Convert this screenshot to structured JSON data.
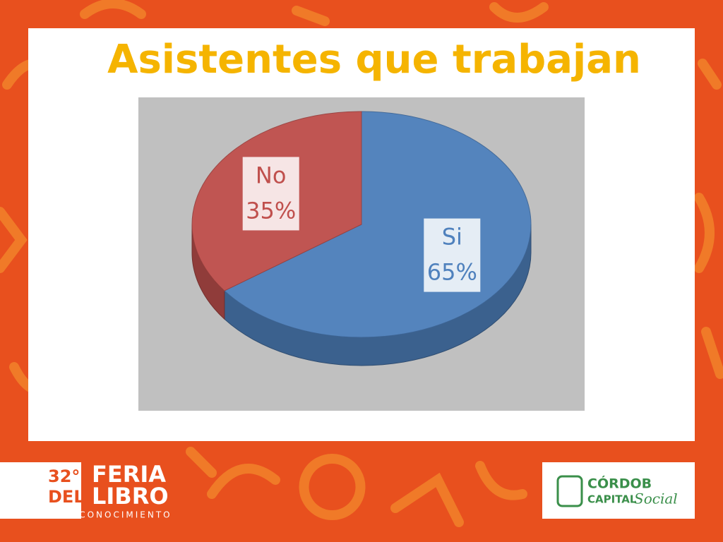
{
  "chart_data": {
    "type": "pie",
    "title": "Asistentes que trabajan",
    "categories": [
      "Si",
      "No"
    ],
    "values": [
      65,
      35
    ],
    "value_labels": [
      "65%",
      "35%"
    ],
    "colors": [
      "#4f81bd",
      "#c0504d"
    ]
  },
  "footer": {
    "left_logo": {
      "edition": "32°",
      "line1": "FERIA",
      "line2a": "DEL",
      "line2b": "LIBRO",
      "line3": "Y EL CONOCIMIENTO"
    },
    "right_logo": {
      "line1": "CÓRDOB",
      "line2": "CAPITAL",
      "line2b": "Social"
    }
  }
}
